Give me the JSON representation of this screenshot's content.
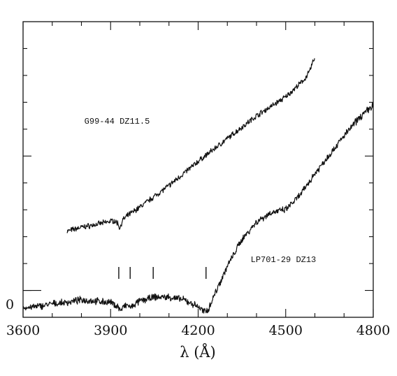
{
  "chart_data": {
    "type": "line",
    "title": "",
    "xlabel": "λ (Å)",
    "ylabel": "",
    "xlim": [
      3600,
      4800
    ],
    "ylim": [
      -0.1,
      1.0
    ],
    "grid": false,
    "legend": "none",
    "x_ticks": [
      3600,
      3900,
      4200,
      4500,
      4800
    ],
    "x_tick_labels": [
      "3600",
      "3900",
      "4200",
      "4500",
      "4800"
    ],
    "y_zero_label": "0",
    "series": [
      {
        "label": "G99-44  DZ11.5",
        "label_at": [
          3810,
          0.62
        ],
        "noise": 0.008,
        "x": [
          3750,
          3800,
          3850,
          3890,
          3910,
          3925,
          3932,
          3940,
          3960,
          4000,
          4100,
          4200,
          4300,
          4400,
          4500,
          4560,
          4580,
          4590,
          4600
        ],
        "y": [
          0.22,
          0.235,
          0.245,
          0.255,
          0.26,
          0.25,
          0.23,
          0.26,
          0.28,
          0.31,
          0.39,
          0.48,
          0.565,
          0.65,
          0.72,
          0.78,
          0.81,
          0.84,
          0.87
        ]
      },
      {
        "label": "LP701-29  DZ13",
        "label_at": [
          4380,
          0.105
        ],
        "noise": 0.01,
        "x": [
          3600,
          3650,
          3700,
          3750,
          3800,
          3850,
          3900,
          3925,
          3935,
          3945,
          3960,
          3970,
          3985,
          4000,
          4050,
          4100,
          4150,
          4200,
          4220,
          4235,
          4250,
          4300,
          4350,
          4400,
          4450,
          4500,
          4550,
          4600,
          4650,
          4700,
          4750,
          4800
        ],
        "y": [
          -0.065,
          -0.06,
          -0.05,
          -0.045,
          -0.035,
          -0.04,
          -0.045,
          -0.06,
          -0.075,
          -0.06,
          -0.055,
          -0.065,
          -0.05,
          -0.04,
          -0.025,
          -0.025,
          -0.035,
          -0.06,
          -0.08,
          -0.07,
          -0.03,
          0.09,
          0.19,
          0.255,
          0.29,
          0.3,
          0.355,
          0.435,
          0.505,
          0.575,
          0.64,
          0.69
        ]
      }
    ],
    "line_markers_x": [
      3928,
      3967,
      4046,
      4227
    ]
  }
}
